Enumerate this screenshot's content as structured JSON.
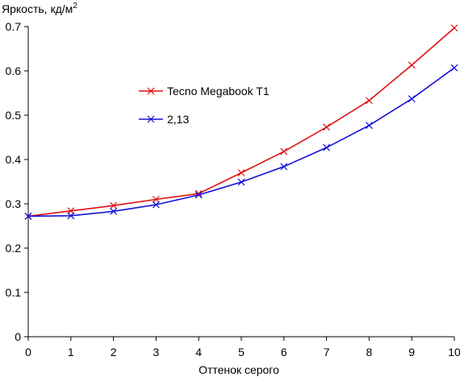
{
  "chart_data": {
    "type": "line",
    "ylabel": "Яркость, кд/м",
    "ylabel_superscript": "2",
    "xlabel": "Оттенок серого",
    "xlim": [
      0,
      10
    ],
    "ylim": [
      0,
      0.7
    ],
    "x_ticks": [
      "0",
      "1",
      "2",
      "3",
      "4",
      "5",
      "6",
      "7",
      "8",
      "9",
      "10"
    ],
    "y_ticks": [
      "0",
      "0.1",
      "0.2",
      "0.3",
      "0.4",
      "0.5",
      "0.6",
      "0.7"
    ],
    "grid": false,
    "legend_position": "center-left",
    "x": [
      0,
      1,
      2,
      3,
      4,
      5,
      6,
      7,
      8,
      9,
      10
    ],
    "series": [
      {
        "name": "Tecno Megabook T1",
        "color": "#e01010",
        "marker": "x",
        "values": [
          0.272,
          0.284,
          0.296,
          0.31,
          0.323,
          0.37,
          0.418,
          0.473,
          0.533,
          0.613,
          0.697
        ]
      },
      {
        "name": "2,13",
        "color": "#1010d8",
        "marker": "x",
        "values": [
          0.272,
          0.273,
          0.283,
          0.298,
          0.32,
          0.349,
          0.384,
          0.427,
          0.477,
          0.537,
          0.607
        ]
      }
    ]
  }
}
